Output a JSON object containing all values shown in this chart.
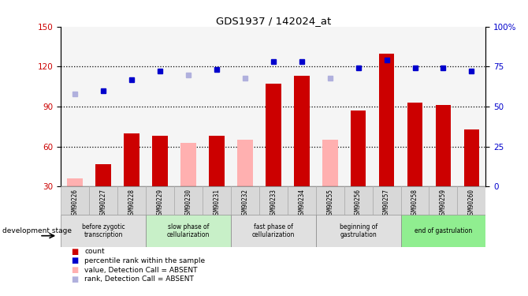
{
  "title": "GDS1937 / 142024_at",
  "samples": [
    "GSM90226",
    "GSM90227",
    "GSM90228",
    "GSM90229",
    "GSM90230",
    "GSM90231",
    "GSM90232",
    "GSM90233",
    "GSM90234",
    "GSM90255",
    "GSM90256",
    "GSM90257",
    "GSM90258",
    "GSM90259",
    "GSM90260"
  ],
  "bar_values": [
    null,
    47,
    70,
    68,
    null,
    68,
    null,
    107,
    113,
    null,
    87,
    130,
    93,
    91,
    73
  ],
  "bar_absent_values": [
    36,
    null,
    null,
    null,
    63,
    null,
    65,
    null,
    null,
    65,
    null,
    null,
    null,
    null,
    null
  ],
  "rank_values": [
    null,
    60,
    67,
    72,
    null,
    73,
    null,
    78,
    78,
    null,
    74,
    79,
    74,
    74,
    72
  ],
  "rank_absent_values": [
    58,
    null,
    null,
    null,
    70,
    null,
    68,
    null,
    null,
    68,
    null,
    null,
    null,
    null,
    null
  ],
  "ylim_left": [
    30,
    150
  ],
  "ylim_right": [
    0,
    100
  ],
  "yticks_left": [
    30,
    60,
    90,
    120,
    150
  ],
  "yticks_right": [
    0,
    25,
    50,
    75,
    100
  ],
  "stages": [
    {
      "label": "before zygotic\ntranscription",
      "start": 0,
      "end": 3,
      "color": "#e0e0e0"
    },
    {
      "label": "slow phase of\ncellularization",
      "start": 3,
      "end": 6,
      "color": "#c8f0c8"
    },
    {
      "label": "fast phase of\ncellularization",
      "start": 6,
      "end": 9,
      "color": "#e0e0e0"
    },
    {
      "label": "beginning of\ngastrulation",
      "start": 9,
      "end": 12,
      "color": "#e0e0e0"
    },
    {
      "label": "end of gastrulation",
      "start": 12,
      "end": 15,
      "color": "#90ee90"
    }
  ],
  "bar_color": "#cc0000",
  "bar_absent_color": "#ffb0b0",
  "rank_color": "#0000cc",
  "rank_absent_color": "#b0b0dd",
  "fig_width": 6.7,
  "fig_height": 3.75,
  "dpi": 100
}
